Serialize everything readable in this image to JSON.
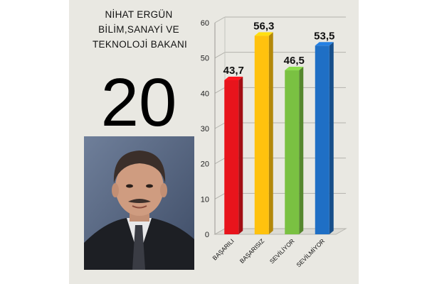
{
  "header": {
    "title_lines": [
      "NİHAT ERGÜN",
      "BİLİM,SANAYİ  VE",
      "TEKNOLOJİ BAKANI"
    ],
    "rank": "20"
  },
  "photo": {
    "icon": "portrait-photo"
  },
  "chart_data": {
    "type": "bar",
    "categories": [
      "BAŞARILI",
      "BAŞARISIZ",
      "SEVİLİYOR",
      "SEVİLMİYOR"
    ],
    "values": [
      43.7,
      56.3,
      46.5,
      53.5
    ],
    "value_labels": [
      "43,7",
      "56,3",
      "46,5",
      "53,5"
    ],
    "colors": [
      "#e8141c",
      "#ffc20e",
      "#7ac142",
      "#1f6fc5"
    ],
    "ylim": [
      0,
      60
    ],
    "yticks": [
      "0",
      "10",
      "20",
      "30",
      "40",
      "50",
      "60"
    ],
    "grid": true,
    "title": "",
    "xlabel": "",
    "ylabel": ""
  }
}
